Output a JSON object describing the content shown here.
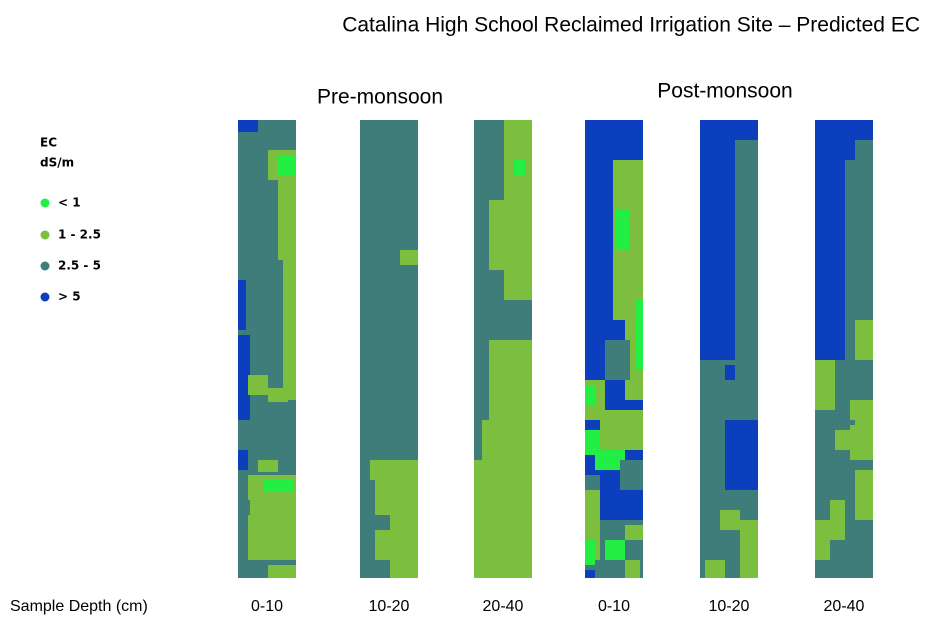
{
  "title": "Catalina High School Reclaimed Irrigation Site – Predicted EC",
  "groups": [
    "Pre-monsoon",
    "Post-monsoon"
  ],
  "legend": {
    "title": "EC",
    "unit": "dS/m",
    "items": [
      {
        "label": "< 1",
        "color": "#22ee44"
      },
      {
        "label": "1 - 2.5",
        "color": "#7cbe3e"
      },
      {
        "label": "2.5 - 5",
        "color": "#3f7d7b"
      },
      {
        "label": "> 5",
        "color": "#0b3fbd"
      }
    ]
  },
  "axis_label": "Sample Depth (cm)",
  "columns": [
    "0-10",
    "10-20",
    "20-40",
    "0-10",
    "10-20",
    "20-40"
  ]
}
